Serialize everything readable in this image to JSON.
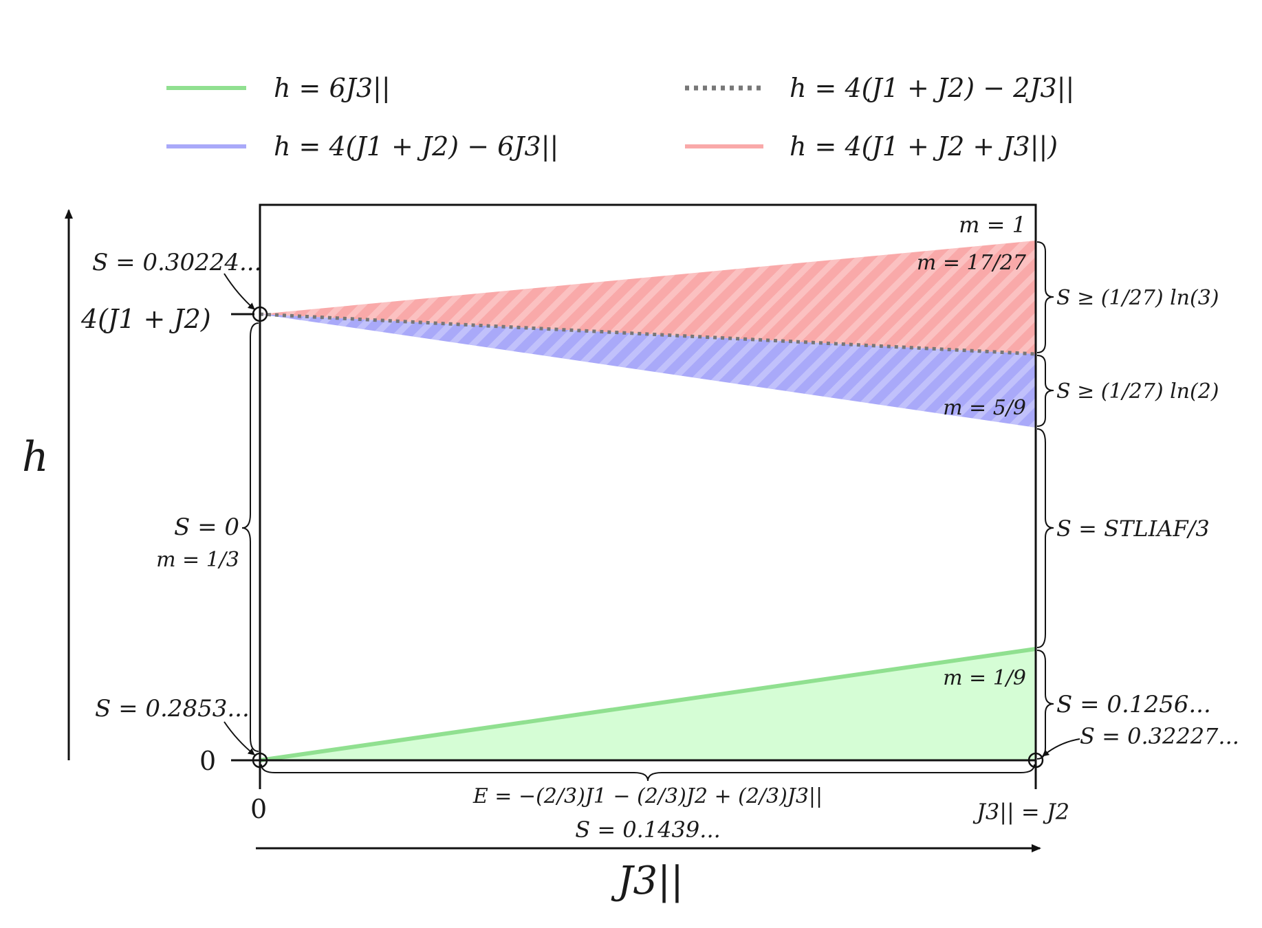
{
  "legend": {
    "green": "h = 6J3||",
    "dotted": "h = 4(J1 + J2) − 2J3||",
    "blue": "h = 4(J1 + J2) − 6J3||",
    "red": "h = 4(J1 + J2 + J3||)"
  },
  "axes": {
    "y_label": "h",
    "x_label": "J3||",
    "y_tick_top": "4(J1 + J2)",
    "y_tick_zero": "0",
    "x_tick_zero": "0",
    "x_tick_right": "J3|| = J2"
  },
  "annotations": {
    "top_left_point": "S = 0.30224...",
    "bottom_left_point": "S = 0.2853...",
    "bottom_right_point": "S = 0.32227...",
    "left_brace_S": "S = 0",
    "left_brace_m": "m = 1/3",
    "bottom_brace_E": "E = −(2/3)J1 − (2/3)J2 + (2/3)J3||",
    "bottom_brace_S": "S = 0.1439...",
    "right_brace_red": "S ≥ (1/27) ln(3)",
    "right_brace_blue": "S ≥ (1/27) ln(2)",
    "right_brace_mid": "S = STLIAF/3",
    "right_brace_green": "S = 0.1256...",
    "m_top": "m = 1",
    "m_red": "m = 17/27",
    "m_blue": "m = 5/9",
    "m_green": "m = 1/9"
  },
  "colors": {
    "green_line": "#90e090",
    "green_fill": "#d5fdd5",
    "blue": "#a9a9f9",
    "red": "#f9a9a9",
    "dotted": "#777777"
  }
}
